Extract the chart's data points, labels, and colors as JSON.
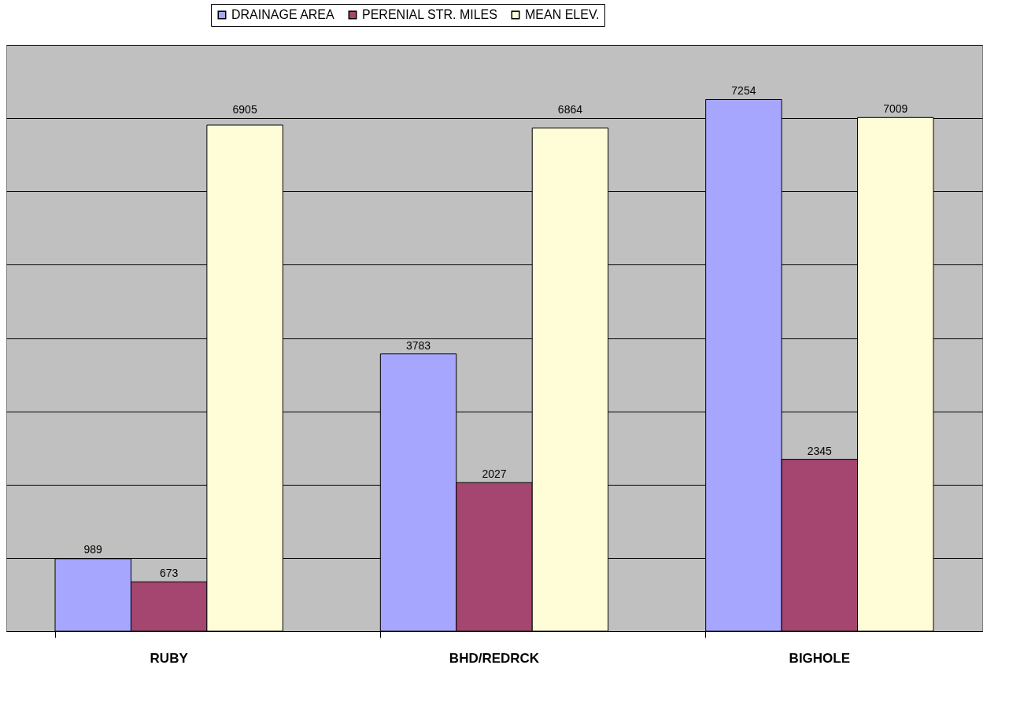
{
  "chart_data": {
    "type": "bar",
    "categories": [
      "RUBY",
      "BHD/REDRCK",
      "BIGHOLE"
    ],
    "series": [
      {
        "name": "DRAINAGE AREA",
        "color": "#a6a6ff",
        "values": [
          989,
          3783,
          7254
        ]
      },
      {
        "name": "PERENIAL STR. MILES",
        "color": "#a4466f",
        "values": [
          673,
          2027,
          2345
        ]
      },
      {
        "name": "MEAN ELEV.",
        "color": "#fffcd8",
        "values": [
          6905,
          6864,
          7009
        ]
      }
    ],
    "ylim": [
      0,
      8000
    ],
    "yticks": [
      {
        "value": 0,
        "label": null
      },
      {
        "value": 1000,
        "label": null
      },
      {
        "value": 2000,
        "label": null
      },
      {
        "value": 3000,
        "label": null
      },
      {
        "value": 4000,
        "label": null
      },
      {
        "value": 5000,
        "label": null
      },
      {
        "value": 6000,
        "label": null
      },
      {
        "value": 7000,
        "label": null
      },
      {
        "value": 8000,
        "label": null
      }
    ],
    "tick_labels": "x",
    "grid": "y",
    "legend": "top",
    "data_labels": true
  }
}
